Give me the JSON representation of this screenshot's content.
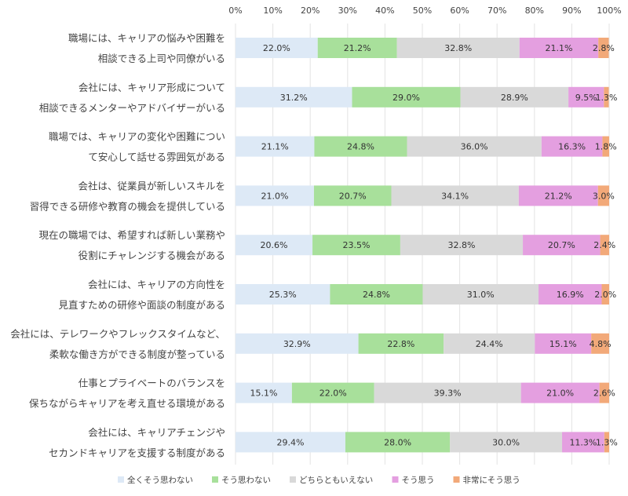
{
  "chart_data": {
    "type": "bar",
    "orientation": "horizontal",
    "stacked": true,
    "xlim": [
      0,
      100
    ],
    "x_ticks": [
      "0%",
      "10%",
      "20%",
      "30%",
      "40%",
      "50%",
      "60%",
      "70%",
      "80%",
      "90%",
      "100%"
    ],
    "grid": true,
    "legend_position": "bottom",
    "categories": [
      [
        "職場には、キャリアの悩みや困難を",
        "相談できる上司や同僚がいる"
      ],
      [
        "会社には、キャリア形成について",
        "相談できるメンターやアドバイザーがいる"
      ],
      [
        "職場では、キャリアの変化や困難につい",
        "て安心して話せる雰囲気がある"
      ],
      [
        "会社は、従業員が新しいスキルを",
        "習得できる研修や教育の機会を提供している"
      ],
      [
        "現在の職場では、希望すれば新しい業務や",
        "役割にチャレンジする機会がある"
      ],
      [
        "会社には、キャリアの方向性を",
        "見直すための研修や面談の制度がある"
      ],
      [
        "会社には、テレワークやフレックスタイムなど、",
        "柔軟な働き方ができる制度が整っている"
      ],
      [
        "仕事とプライベートのバランスを",
        "保ちながらキャリアを考え直せる環境がある"
      ],
      [
        "会社には、キャリアチェンジや",
        "セカンドキャリアを支援する制度がある"
      ]
    ],
    "series": [
      {
        "name": "全くそう思わない",
        "color": "#dde9f6",
        "values": [
          22.0,
          31.2,
          21.1,
          21.0,
          20.6,
          25.3,
          32.9,
          15.1,
          29.4
        ]
      },
      {
        "name": "そう思わない",
        "color": "#a8e09b",
        "values": [
          21.2,
          29.0,
          24.8,
          20.7,
          23.5,
          24.8,
          22.8,
          22.0,
          28.0
        ]
      },
      {
        "name": "どちらともいえない",
        "color": "#d9d9d9",
        "values": [
          32.8,
          28.9,
          36.0,
          34.1,
          32.8,
          31.0,
          24.4,
          39.3,
          30.0
        ]
      },
      {
        "name": "そう思う",
        "color": "#e49fe0",
        "values": [
          21.1,
          9.5,
          16.3,
          21.2,
          20.7,
          16.9,
          15.1,
          21.0,
          11.3
        ]
      },
      {
        "name": "非常にそう思う",
        "color": "#f2a979",
        "values": [
          2.8,
          1.3,
          1.8,
          3.0,
          2.4,
          2.0,
          4.8,
          2.6,
          1.3
        ]
      }
    ]
  }
}
